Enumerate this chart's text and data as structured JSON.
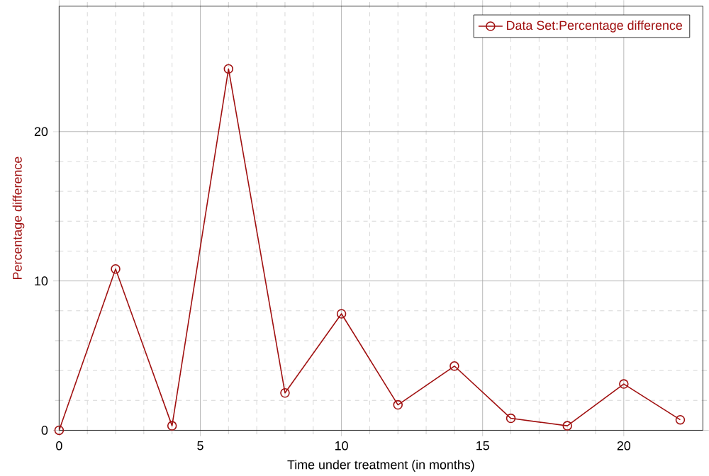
{
  "chart_data": {
    "type": "line",
    "xlabel": "Time under treatment (in months)",
    "ylabel": "Percentage difference",
    "x": [
      0,
      2,
      4,
      6,
      8,
      10,
      12,
      14,
      16,
      18,
      20,
      22
    ],
    "series": [
      {
        "name": "Data Set:Percentage difference",
        "color": "#a01010",
        "values": [
          0,
          10.8,
          0.3,
          24.2,
          2.5,
          7.8,
          1.7,
          4.3,
          0.8,
          0.3,
          3.1,
          0.7
        ]
      }
    ],
    "xlim": [
      0,
      22.8
    ],
    "ylim": [
      0,
      28.4
    ],
    "xticks": [
      0,
      5,
      10,
      15,
      20
    ],
    "yticks": [
      0,
      10,
      20
    ],
    "grid": true,
    "legend": "top right",
    "marker": "circle",
    "line_style": "solid"
  }
}
